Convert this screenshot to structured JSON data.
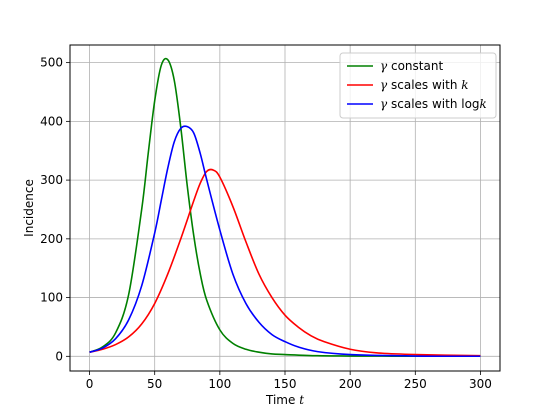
{
  "chart_data": {
    "type": "line",
    "xlabel": "Time",
    "xlabel_var": "t",
    "ylabel": "Incidence",
    "xlim": [
      -15,
      315
    ],
    "ylim": [
      -25,
      530
    ],
    "xticks": [
      0,
      50,
      100,
      150,
      200,
      250,
      300
    ],
    "yticks": [
      0,
      100,
      200,
      300,
      400,
      500
    ],
    "grid": true,
    "legend_position": "top-right",
    "series": [
      {
        "name": "γ constant",
        "legend_parts": [
          "γ",
          " constant"
        ],
        "color": "#008000",
        "x": [
          0,
          10,
          20,
          30,
          40,
          45,
          50,
          55,
          60,
          65,
          70,
          75,
          80,
          85,
          90,
          100,
          110,
          120,
          130,
          140,
          150,
          175,
          200,
          250,
          300
        ],
        "y": [
          7,
          16,
          40,
          105,
          250,
          345,
          435,
          495,
          505,
          470,
          390,
          290,
          205,
          140,
          95,
          45,
          22,
          12,
          7,
          4,
          3,
          1,
          0.5,
          0.2,
          0.1
        ]
      },
      {
        "name": "γ scales with k",
        "legend_parts": [
          "γ",
          " scales with ",
          "k"
        ],
        "color": "#ff0000",
        "x": [
          0,
          10,
          20,
          30,
          40,
          50,
          60,
          70,
          80,
          85,
          90,
          95,
          100,
          110,
          120,
          130,
          140,
          150,
          160,
          170,
          180,
          200,
          220,
          250,
          300
        ],
        "y": [
          7,
          12,
          20,
          33,
          55,
          90,
          140,
          200,
          265,
          295,
          315,
          317,
          305,
          255,
          195,
          140,
          100,
          70,
          50,
          35,
          25,
          12,
          6,
          3,
          1
        ]
      },
      {
        "name": "γ scales with log k",
        "legend_parts": [
          "γ",
          " scales with log",
          "k"
        ],
        "color": "#0000ff",
        "x": [
          0,
          10,
          20,
          30,
          40,
          50,
          55,
          60,
          65,
          70,
          75,
          80,
          85,
          90,
          100,
          110,
          120,
          130,
          140,
          150,
          160,
          175,
          200,
          250,
          300
        ],
        "y": [
          7,
          14,
          30,
          62,
          120,
          210,
          265,
          320,
          365,
          388,
          391,
          380,
          345,
          300,
          215,
          140,
          90,
          58,
          37,
          25,
          16,
          8,
          3,
          0.5,
          0.1
        ]
      }
    ]
  }
}
